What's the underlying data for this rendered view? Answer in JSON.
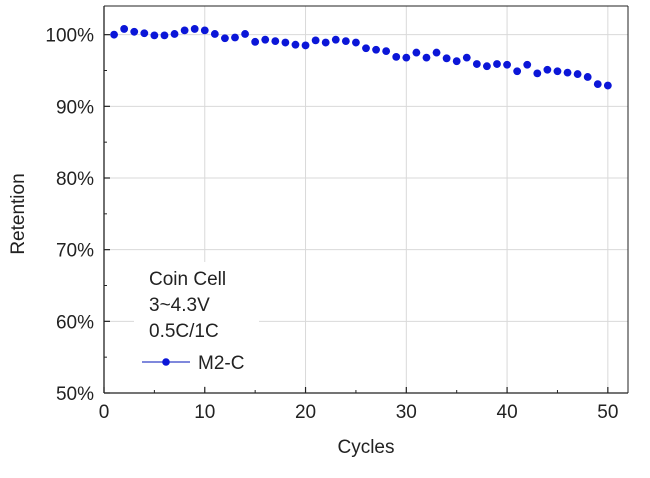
{
  "chart_data": {
    "type": "scatter",
    "xlabel": "Cycles",
    "ylabel": "Retention",
    "xlim": [
      0,
      52
    ],
    "ylim": [
      50,
      104
    ],
    "x_ticks": [
      0,
      10,
      20,
      30,
      40,
      50
    ],
    "x_tick_labels": [
      "0",
      "10",
      "20",
      "30",
      "40",
      "50"
    ],
    "y_ticks": [
      50,
      60,
      70,
      80,
      90,
      100
    ],
    "y_tick_labels": [
      "50%",
      "60%",
      "70%",
      "80%",
      "90%",
      "100%"
    ],
    "grid": true,
    "legend_placement": "bottom-left",
    "legend_text": [
      "Coin Cell",
      "3~4.3V",
      "0.5C/1C"
    ],
    "series": [
      {
        "name": "M2-C",
        "color": "#0b16d8",
        "x": [
          1,
          2,
          3,
          4,
          5,
          6,
          7,
          8,
          9,
          10,
          11,
          12,
          13,
          14,
          15,
          16,
          17,
          18,
          19,
          20,
          21,
          22,
          23,
          24,
          25,
          26,
          27,
          28,
          29,
          30,
          31,
          32,
          33,
          34,
          35,
          36,
          37,
          38,
          39,
          40,
          41,
          42,
          43,
          44,
          45,
          46,
          47,
          48,
          49,
          50
        ],
        "y": [
          100.0,
          100.8,
          100.4,
          100.2,
          99.9,
          99.9,
          100.1,
          100.6,
          100.8,
          100.6,
          100.1,
          99.5,
          99.6,
          100.1,
          99.0,
          99.3,
          99.1,
          98.9,
          98.6,
          98.5,
          99.2,
          98.9,
          99.3,
          99.1,
          98.9,
          98.1,
          97.9,
          97.7,
          96.9,
          96.8,
          97.5,
          96.8,
          97.5,
          96.7,
          96.3,
          96.8,
          95.9,
          95.6,
          95.9,
          95.8,
          94.9,
          95.8,
          94.6,
          95.1,
          94.9,
          94.7,
          94.5,
          94.1,
          93.1,
          92.9
        ]
      }
    ]
  }
}
